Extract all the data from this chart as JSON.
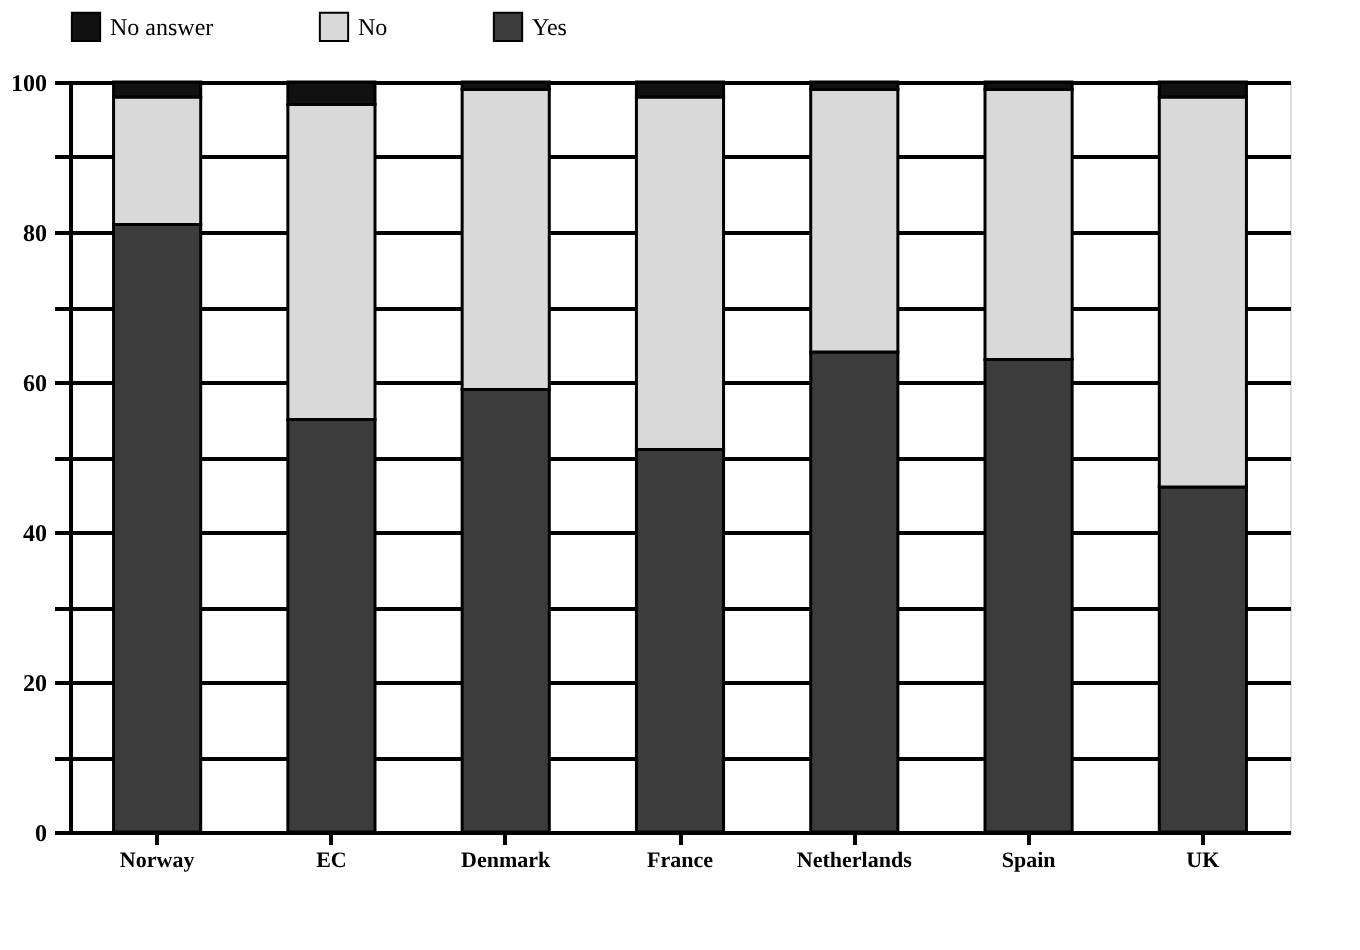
{
  "chart_data": {
    "type": "bar",
    "stacked": true,
    "categories": [
      "Norway",
      "EC",
      "Denmark",
      "France",
      "Netherlands",
      "Spain",
      "UK"
    ],
    "series": [
      {
        "name": "Yes",
        "color": "#3c3c3c",
        "values": [
          81,
          55,
          59,
          51,
          64,
          63,
          46
        ]
      },
      {
        "name": "No",
        "color": "#d9d9d9",
        "values": [
          17,
          42,
          40,
          47,
          35,
          36,
          52
        ]
      },
      {
        "name": "No answer",
        "color": "#111111",
        "values": [
          2,
          3,
          1,
          2,
          1,
          1,
          2
        ]
      }
    ],
    "ylim": [
      0,
      100
    ],
    "yticks": [
      0,
      {
        "value": 10,
        "label": null
      },
      20,
      {
        "value": 30,
        "label": null
      },
      40,
      {
        "value": 50,
        "label": null
      },
      60,
      {
        "value": 70,
        "label": null
      },
      80,
      {
        "value": 90,
        "label": null
      },
      100
    ],
    "grid": "y",
    "legend": "top"
  }
}
